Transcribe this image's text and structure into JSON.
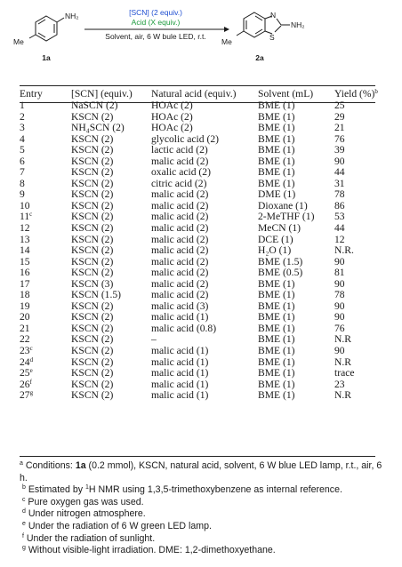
{
  "scheme": {
    "reactant_sub": "NH₂",
    "reactant_me": "Me",
    "reactant_label": "1a",
    "cond_line1": "[SCN] (2 equiv.)",
    "cond_line2": "Acid (X equiv.)",
    "cond_line3": "Solvent, air, 6 W bule LED, r.t.",
    "product_sub": "NH₂",
    "product_n": "N",
    "product_s": "S",
    "product_me": "Me",
    "product_label": "2a",
    "colors": {
      "blue": "#1f4fd1",
      "green": "#1a9a3b",
      "ink": "#1a1a1a"
    }
  },
  "table": {
    "headers": [
      "Entry",
      "[SCN] (equiv.)",
      "Natural acid (equiv.)",
      "Solvent (mL)",
      "Yield (%)"
    ],
    "yield_sup": "b",
    "rows": [
      {
        "entry": "1",
        "sup": "",
        "scn": "NaSCN (2)",
        "acid": "HOAc (2)",
        "solvent": "BME (1)",
        "yield": "25"
      },
      {
        "entry": "2",
        "sup": "",
        "scn": "KSCN (2)",
        "acid": "HOAc (2)",
        "solvent": "BME (1)",
        "yield": "29"
      },
      {
        "entry": "3",
        "sup": "",
        "scn": "NH₄SCN (2)",
        "acid": "HOAc (2)",
        "solvent": "BME (1)",
        "yield": "21"
      },
      {
        "entry": "4",
        "sup": "",
        "scn": "KSCN (2)",
        "acid": "glycolic acid (2)",
        "solvent": "BME (1)",
        "yield": "76"
      },
      {
        "entry": "5",
        "sup": "",
        "scn": "KSCN (2)",
        "acid": "lactic acid (2)",
        "solvent": "BME (1)",
        "yield": "39"
      },
      {
        "entry": "6",
        "sup": "",
        "scn": "KSCN (2)",
        "acid": "malic acid (2)",
        "solvent": "BME (1)",
        "yield": "90"
      },
      {
        "entry": "7",
        "sup": "",
        "scn": "KSCN (2)",
        "acid": "oxalic acid (2)",
        "solvent": "BME (1)",
        "yield": "44"
      },
      {
        "entry": "8",
        "sup": "",
        "scn": "KSCN (2)",
        "acid": "citric acid (2)",
        "solvent": "BME (1)",
        "yield": "31"
      },
      {
        "entry": "9",
        "sup": "",
        "scn": "KSCN (2)",
        "acid": "malic acid (2)",
        "solvent": "DME (1)",
        "yield": "78"
      },
      {
        "entry": "10",
        "sup": "",
        "scn": "KSCN (2)",
        "acid": "malic acid (2)",
        "solvent": "Dioxane (1)",
        "yield": "86"
      },
      {
        "entry": "11",
        "sup": "c",
        "scn": "KSCN (2)",
        "acid": "malic acid (2)",
        "solvent": "2-MeTHF (1)",
        "yield": "53"
      },
      {
        "entry": "12",
        "sup": "",
        "scn": "KSCN (2)",
        "acid": "malic acid (2)",
        "solvent": "MeCN (1)",
        "yield": "44"
      },
      {
        "entry": "13",
        "sup": "",
        "scn": "KSCN (2)",
        "acid": "malic acid (2)",
        "solvent": "DCE (1)",
        "yield": "12"
      },
      {
        "entry": "14",
        "sup": "",
        "scn": "KSCN (2)",
        "acid": "malic acid (2)",
        "solvent": "H₂O (1)",
        "yield": "N.R."
      },
      {
        "entry": "15",
        "sup": "",
        "scn": "KSCN (2)",
        "acid": "malic acid (2)",
        "solvent": "BME (1.5)",
        "yield": "90"
      },
      {
        "entry": "16",
        "sup": "",
        "scn": "KSCN (2)",
        "acid": "malic acid (2)",
        "solvent": "BME (0.5)",
        "yield": "81"
      },
      {
        "entry": "17",
        "sup": "",
        "scn": "KSCN (3)",
        "acid": "malic acid (2)",
        "solvent": "BME (1)",
        "yield": "90"
      },
      {
        "entry": "18",
        "sup": "",
        "scn": "KSCN (1.5)",
        "acid": "malic acid (2)",
        "solvent": "BME (1)",
        "yield": "78"
      },
      {
        "entry": "19",
        "sup": "",
        "scn": "KSCN (2)",
        "acid": "malic acid (3)",
        "solvent": "BME (1)",
        "yield": "90"
      },
      {
        "entry": "20",
        "sup": "",
        "scn": "KSCN (2)",
        "acid": "malic acid (1)",
        "solvent": "BME (1)",
        "yield": "90"
      },
      {
        "entry": "21",
        "sup": "",
        "scn": "KSCN (2)",
        "acid": "malic acid (0.8)",
        "solvent": "BME (1)",
        "yield": "76"
      },
      {
        "entry": "22",
        "sup": "",
        "scn": "KSCN (2)",
        "acid": "–",
        "solvent": "BME (1)",
        "yield": "N.R"
      },
      {
        "entry": "23",
        "sup": "c",
        "scn": "KSCN (2)",
        "acid": "malic acid (1)",
        "solvent": "BME (1)",
        "yield": "90"
      },
      {
        "entry": "24",
        "sup": "d",
        "scn": "KSCN (2)",
        "acid": "malic acid (1)",
        "solvent": "BME (1)",
        "yield": "N.R"
      },
      {
        "entry": "25",
        "sup": "e",
        "scn": "KSCN (2)",
        "acid": "malic acid (1)",
        "solvent": "BME (1)",
        "yield": "trace"
      },
      {
        "entry": "26",
        "sup": "f",
        "scn": "KSCN (2)",
        "acid": "malic acid (1)",
        "solvent": "BME (1)",
        "yield": "23"
      },
      {
        "entry": "27",
        "sup": "g",
        "scn": "KSCN (2)",
        "acid": "malic acid (1)",
        "solvent": "BME (1)",
        "yield": "N.R"
      }
    ]
  },
  "footnotes": {
    "a_sup": "a",
    "a_pre": "Conditions: ",
    "a_bold": "1a",
    "a_post": " (0.2 mmol), KSCN, natural acid, solvent, 6 W blue LED lamp, r.t., air, 6 h.",
    "b_sup": "b",
    "b_pre": "Estimated by ",
    "b_iso": "1",
    "b_post": "H NMR using 1,3,5-trimethoxybenzene as internal reference.",
    "c_sup": "c",
    "c_text": "Pure oxygen gas was used.",
    "d_sup": "d",
    "d_text": "Under nitrogen atmosphere.",
    "e_sup": "e",
    "e_text": "Under the radiation of 6 W green LED lamp.",
    "f_sup": "f",
    "f_text": "Under the radiation of sunlight.",
    "g_sup": "g",
    "g_text": "Without visible-light irradiation. DME: 1,2-dimethoxyethane."
  }
}
